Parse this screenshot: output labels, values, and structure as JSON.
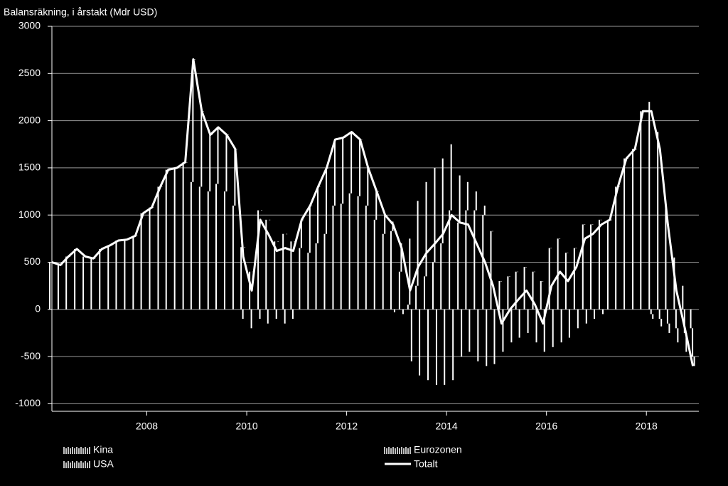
{
  "chart_data": {
    "type": "bar+line",
    "title": "Balansräkning, i årstakt (Mdr USD)",
    "x": [
      2006.1,
      2006.27,
      2006.43,
      2006.6,
      2006.77,
      2006.93,
      2007.1,
      2007.27,
      2007.43,
      2007.6,
      2007.77,
      2007.93,
      2008.1,
      2008.27,
      2008.43,
      2008.6,
      2008.77,
      2008.93,
      2009.1,
      2009.27,
      2009.43,
      2009.6,
      2009.77,
      2009.93,
      2010.1,
      2010.27,
      2010.43,
      2010.6,
      2010.77,
      2010.93,
      2011.1,
      2011.27,
      2011.43,
      2011.6,
      2011.77,
      2011.93,
      2012.1,
      2012.27,
      2012.43,
      2012.6,
      2012.77,
      2012.93,
      2013.1,
      2013.27,
      2013.43,
      2013.6,
      2013.77,
      2013.93,
      2014.1,
      2014.27,
      2014.43,
      2014.6,
      2014.77,
      2014.93,
      2015.1,
      2015.27,
      2015.43,
      2015.6,
      2015.77,
      2015.93,
      2016.1,
      2016.27,
      2016.43,
      2016.6,
      2016.77,
      2016.93,
      2017.1,
      2017.27,
      2017.43,
      2017.6,
      2017.77,
      2017.93,
      2018.1,
      2018.27,
      2018.43,
      2018.6,
      2018.77,
      2018.93
    ],
    "series": [
      {
        "name": "Kina",
        "color": "#ffffff",
        "values": [
          500,
          470,
          560,
          640,
          560,
          540,
          640,
          680,
          730,
          740,
          780,
          1020,
          1080,
          1300,
          1480,
          1500,
          1560,
          1350,
          1300,
          1250,
          1330,
          1250,
          1100,
          660,
          400,
          1050,
          950,
          720,
          800,
          720,
          650,
          600,
          700,
          800,
          1100,
          1120,
          1230,
          1200,
          1100,
          950,
          800,
          830,
          400,
          50,
          250,
          350,
          500,
          700,
          1050,
          920,
          1050,
          1050,
          1000,
          830,
          300,
          350,
          400,
          450,
          400,
          300,
          650,
          750,
          600,
          650,
          900,
          900,
          950,
          950,
          1300,
          1600,
          1700,
          2100,
          2200,
          1880,
          1150,
          550,
          250,
          -200
        ]
      },
      {
        "name": "USA",
        "color": "#ffffff",
        "values": [
          0,
          0,
          0,
          0,
          0,
          0,
          0,
          0,
          0,
          0,
          0,
          0,
          0,
          0,
          0,
          0,
          0,
          1300,
          800,
          600,
          600,
          600,
          600,
          -100,
          -200,
          -100,
          -150,
          -100,
          -150,
          -100,
          300,
          500,
          600,
          700,
          700,
          700,
          650,
          600,
          400,
          300,
          200,
          100,
          300,
          700,
          900,
          1000,
          1000,
          900,
          700,
          500,
          300,
          200,
          100,
          0,
          0,
          0,
          0,
          0,
          0,
          0,
          0,
          0,
          0,
          0,
          0,
          0,
          0,
          0,
          0,
          0,
          0,
          0,
          -50,
          -100,
          -150,
          -200,
          -250,
          -300
        ]
      },
      {
        "name": "Eurozonen",
        "color": "#ffffff",
        "values": [
          0,
          0,
          0,
          0,
          0,
          0,
          0,
          0,
          0,
          0,
          0,
          0,
          0,
          0,
          0,
          0,
          0,
          0,
          0,
          0,
          0,
          0,
          0,
          0,
          0,
          0,
          0,
          0,
          0,
          0,
          0,
          0,
          0,
          0,
          0,
          0,
          0,
          0,
          0,
          0,
          0,
          -30,
          -50,
          -550,
          -700,
          -750,
          -800,
          -800,
          -750,
          -500,
          -450,
          -550,
          -600,
          -580,
          -450,
          -350,
          -300,
          -250,
          -350,
          -450,
          -400,
          -350,
          -300,
          -200,
          -150,
          -100,
          -50,
          0,
          0,
          0,
          0,
          0,
          -50,
          -80,
          -100,
          -150,
          -200,
          -100
        ]
      },
      {
        "name": "Totalt",
        "color": "#ffffff",
        "values": [
          500,
          470,
          560,
          640,
          560,
          540,
          640,
          680,
          730,
          740,
          780,
          1020,
          1080,
          1300,
          1480,
          1500,
          1560,
          2650,
          2100,
          1850,
          1930,
          1850,
          1700,
          560,
          200,
          950,
          800,
          620,
          650,
          620,
          950,
          1100,
          1300,
          1500,
          1800,
          1820,
          1880,
          1800,
          1500,
          1250,
          1000,
          900,
          650,
          200,
          450,
          600,
          700,
          800,
          1000,
          920,
          900,
          700,
          500,
          250,
          -150,
          0,
          100,
          200,
          50,
          -150,
          250,
          400,
          300,
          450,
          750,
          800,
          900,
          950,
          1300,
          1600,
          1700,
          2100,
          2100,
          1700,
          900,
          200,
          -200,
          -600
        ]
      }
    ],
    "xlim": [
      2006.1,
      2019.05
    ],
    "xticks": [
      2008,
      2010,
      2012,
      2014,
      2016,
      2018
    ],
    "ylim": [
      -1080,
      3000
    ],
    "yticks": [
      -1000,
      -500,
      0,
      500,
      1000,
      1500,
      2000,
      2500,
      3000
    ],
    "grid": true
  }
}
